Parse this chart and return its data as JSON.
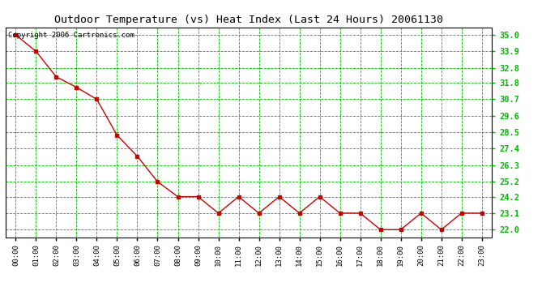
{
  "title": "Outdoor Temperature (vs) Heat Index (Last 24 Hours) 20061130",
  "copyright_text": "Copyright 2006 Cartronics.com",
  "x_labels": [
    "00:00",
    "01:00",
    "02:00",
    "03:00",
    "04:00",
    "05:00",
    "06:00",
    "07:00",
    "08:00",
    "09:00",
    "10:00",
    "11:00",
    "12:00",
    "13:00",
    "14:00",
    "15:00",
    "16:00",
    "17:00",
    "18:00",
    "19:00",
    "20:00",
    "21:00",
    "22:00",
    "23:00"
  ],
  "y_values": [
    35.0,
    33.9,
    32.2,
    31.5,
    30.7,
    28.3,
    26.9,
    25.2,
    24.2,
    24.2,
    23.1,
    24.2,
    23.1,
    24.2,
    23.1,
    24.2,
    23.1,
    23.1,
    22.0,
    22.0,
    23.1,
    22.0,
    23.1,
    23.1
  ],
  "y_ticks": [
    22.0,
    23.1,
    24.2,
    25.2,
    26.3,
    27.4,
    28.5,
    29.6,
    30.7,
    31.8,
    32.8,
    33.9,
    35.0
  ],
  "ylim_min": 21.5,
  "ylim_max": 35.5,
  "line_color": "#cc0000",
  "marker_color": "#cc0000",
  "bg_color": "#ffffff",
  "plot_bg_color": "#ffffff",
  "grid_color": "#00bb00",
  "title_color": "#000000",
  "border_color": "#000000",
  "title_fontsize": 9.5,
  "copyright_fontsize": 6.5,
  "xtick_fontsize": 6.5,
  "ytick_fontsize": 7.5
}
